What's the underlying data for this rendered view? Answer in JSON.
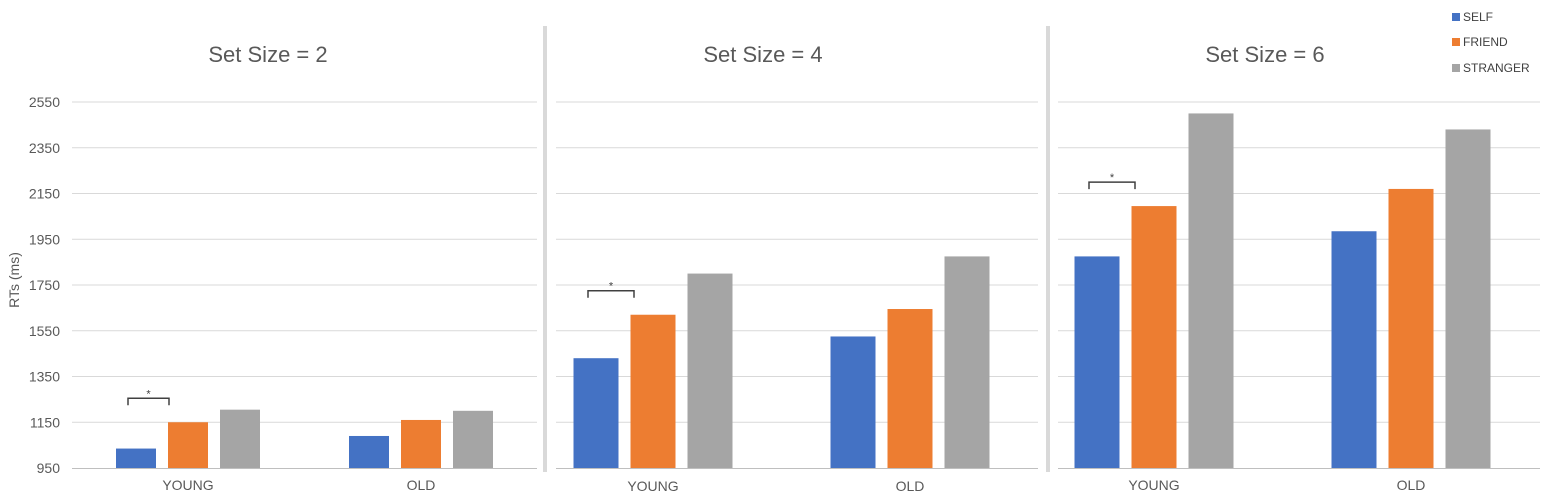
{
  "chart_data": {
    "type": "bar",
    "ylabel": "RTs (ms)",
    "ylim": [
      950,
      2550
    ],
    "yticks": [
      950,
      1150,
      1350,
      1550,
      1750,
      1950,
      2150,
      2350,
      2550
    ],
    "categories": [
      "YOUNG",
      "OLD"
    ],
    "legend": {
      "position": "top-right",
      "entries": [
        "SELF",
        "FRIEND",
        "STRANGER"
      ]
    },
    "colors": {
      "SELF": "#4472C4",
      "FRIEND": "#ED7D31",
      "STRANGER": "#A5A5A5"
    },
    "panels": [
      {
        "title": "Set Size = 2",
        "series": [
          {
            "name": "SELF",
            "values": [
              1035,
              1090
            ]
          },
          {
            "name": "FRIEND",
            "values": [
              1150,
              1160
            ]
          },
          {
            "name": "STRANGER",
            "values": [
              1205,
              1200
            ]
          }
        ],
        "annotations": [
          {
            "text": "*",
            "category": "YOUNG",
            "between": [
              "SELF",
              "FRIEND"
            ]
          }
        ]
      },
      {
        "title": "Set Size = 4",
        "series": [
          {
            "name": "SELF",
            "values": [
              1430,
              1525
            ]
          },
          {
            "name": "FRIEND",
            "values": [
              1620,
              1645
            ]
          },
          {
            "name": "STRANGER",
            "values": [
              1800,
              1875
            ]
          }
        ],
        "annotations": [
          {
            "text": "*",
            "category": "YOUNG",
            "between": [
              "SELF",
              "FRIEND"
            ]
          }
        ]
      },
      {
        "title": "Set Size = 6",
        "series": [
          {
            "name": "SELF",
            "values": [
              1875,
              1985
            ]
          },
          {
            "name": "FRIEND",
            "values": [
              2095,
              2170
            ]
          },
          {
            "name": "STRANGER",
            "values": [
              2500,
              2430
            ]
          }
        ],
        "annotations": [
          {
            "text": "*",
            "category": "YOUNG",
            "between": [
              "SELF",
              "FRIEND"
            ]
          }
        ]
      }
    ]
  }
}
